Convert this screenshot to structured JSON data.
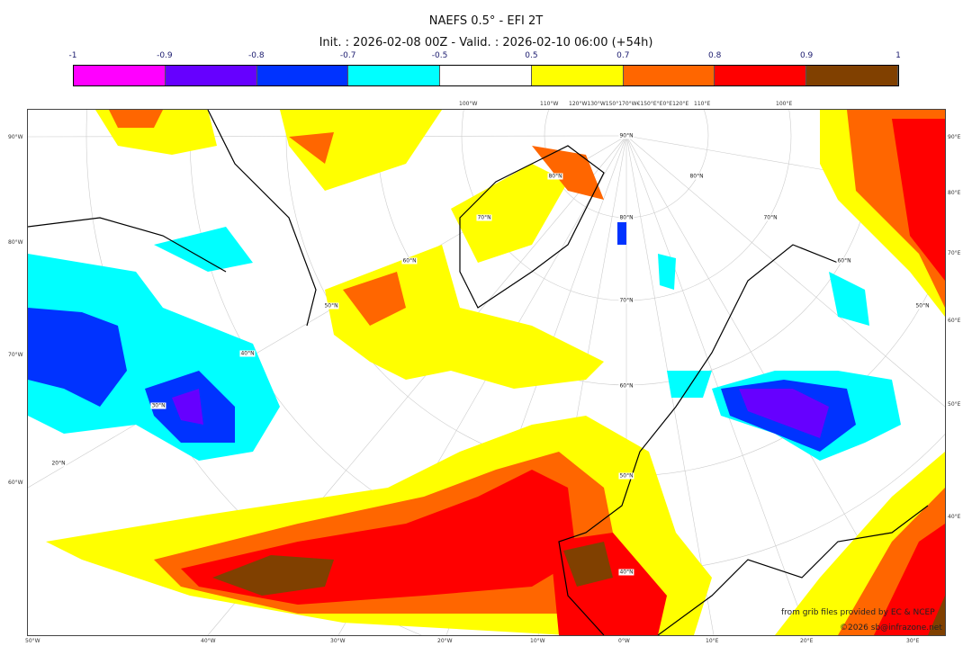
{
  "header": {
    "title": "NAEFS 0.5° - EFI 2T",
    "subtitle": "Init. : 2026-02-08 00Z - Valid. : 2026-02-10 06:00 (+54h)"
  },
  "colorbar": {
    "ticks": [
      "-1",
      "-0.9",
      "-0.8",
      "-0.7",
      "-0.5",
      "0.5",
      "0.7",
      "0.8",
      "0.9",
      "1"
    ],
    "colors": [
      "#ff00ff",
      "#6600ff",
      "#0033ff",
      "#00ffff",
      "#ffffff",
      "#ffff00",
      "#ff6600",
      "#ff0000",
      "#804000"
    ]
  },
  "axes": {
    "left": [
      "90°W",
      "80°W",
      "70°W",
      "60°W"
    ],
    "right": [
      "90°E",
      "80°E",
      "70°E",
      "60°E",
      "50°E",
      "40°E"
    ],
    "bottom": [
      "50°W",
      "40°W",
      "30°W",
      "20°W",
      "10°W",
      "0°W",
      "10°E",
      "20°E",
      "30°E"
    ],
    "top": [
      "100°W",
      "110°W",
      "120°W130°W150°170°W€150°E°E0°E120°E",
      "110°E",
      "100°E"
    ],
    "center_lat": [
      "90°N",
      "80°N",
      "70°N",
      "60°N",
      "50°N",
      "40°N"
    ],
    "left_arc": [
      "80°N",
      "70°N",
      "60°N",
      "50°N",
      "40°N",
      "30°N",
      "20°N"
    ],
    "right_arc": [
      "80°N",
      "70°N",
      "60°N",
      "50°N"
    ]
  },
  "credits": {
    "source": "from grib files provided by EC & NCEP",
    "copyright": "©2026 sb@infrazone.net"
  }
}
